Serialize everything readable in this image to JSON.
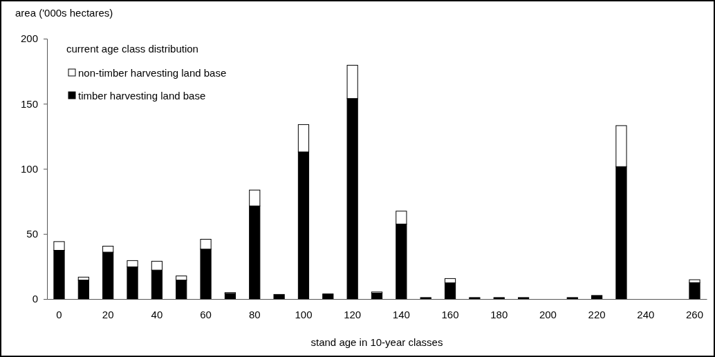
{
  "chart_data": {
    "type": "bar",
    "title": "current age class distribution",
    "ylabel": "area ('000s hectares)",
    "xlabel": "stand age in 10-year classes",
    "categories": [
      "0",
      null,
      "20",
      null,
      "40",
      null,
      "60",
      null,
      "80",
      null,
      "100",
      null,
      "120",
      null,
      "140",
      null,
      "160",
      null,
      "180",
      null,
      "200",
      null,
      "220",
      null,
      "240",
      null,
      "260"
    ],
    "stacked": true,
    "ylim": [
      0,
      200
    ],
    "yticks": [
      0,
      50,
      100,
      150,
      200
    ],
    "grid": false,
    "legend": "top left",
    "series": [
      {
        "name": "timber harvesting land base",
        "color": "#000000",
        "values": [
          37.4,
          14.5,
          36,
          24.7,
          22.2,
          14.5,
          38.3,
          4.2,
          71.5,
          3.5,
          113,
          3.9,
          154,
          4.5,
          57.6,
          1.1,
          12.4,
          1.1,
          1.1,
          1.1,
          0,
          1.1,
          2.7,
          101.7,
          0,
          0,
          12.6
        ]
      },
      {
        "name": "non-timber harvesting land base",
        "color": "#ffffff",
        "values": [
          6.7,
          2.3,
          4.6,
          4.8,
          6.8,
          3.2,
          7.6,
          0.7,
          12.2,
          0,
          21,
          0,
          25.6,
          0.9,
          9.9,
          0,
          3.3,
          0,
          0,
          0,
          0,
          0,
          0,
          31.5,
          0,
          0,
          2.2
        ]
      }
    ]
  }
}
